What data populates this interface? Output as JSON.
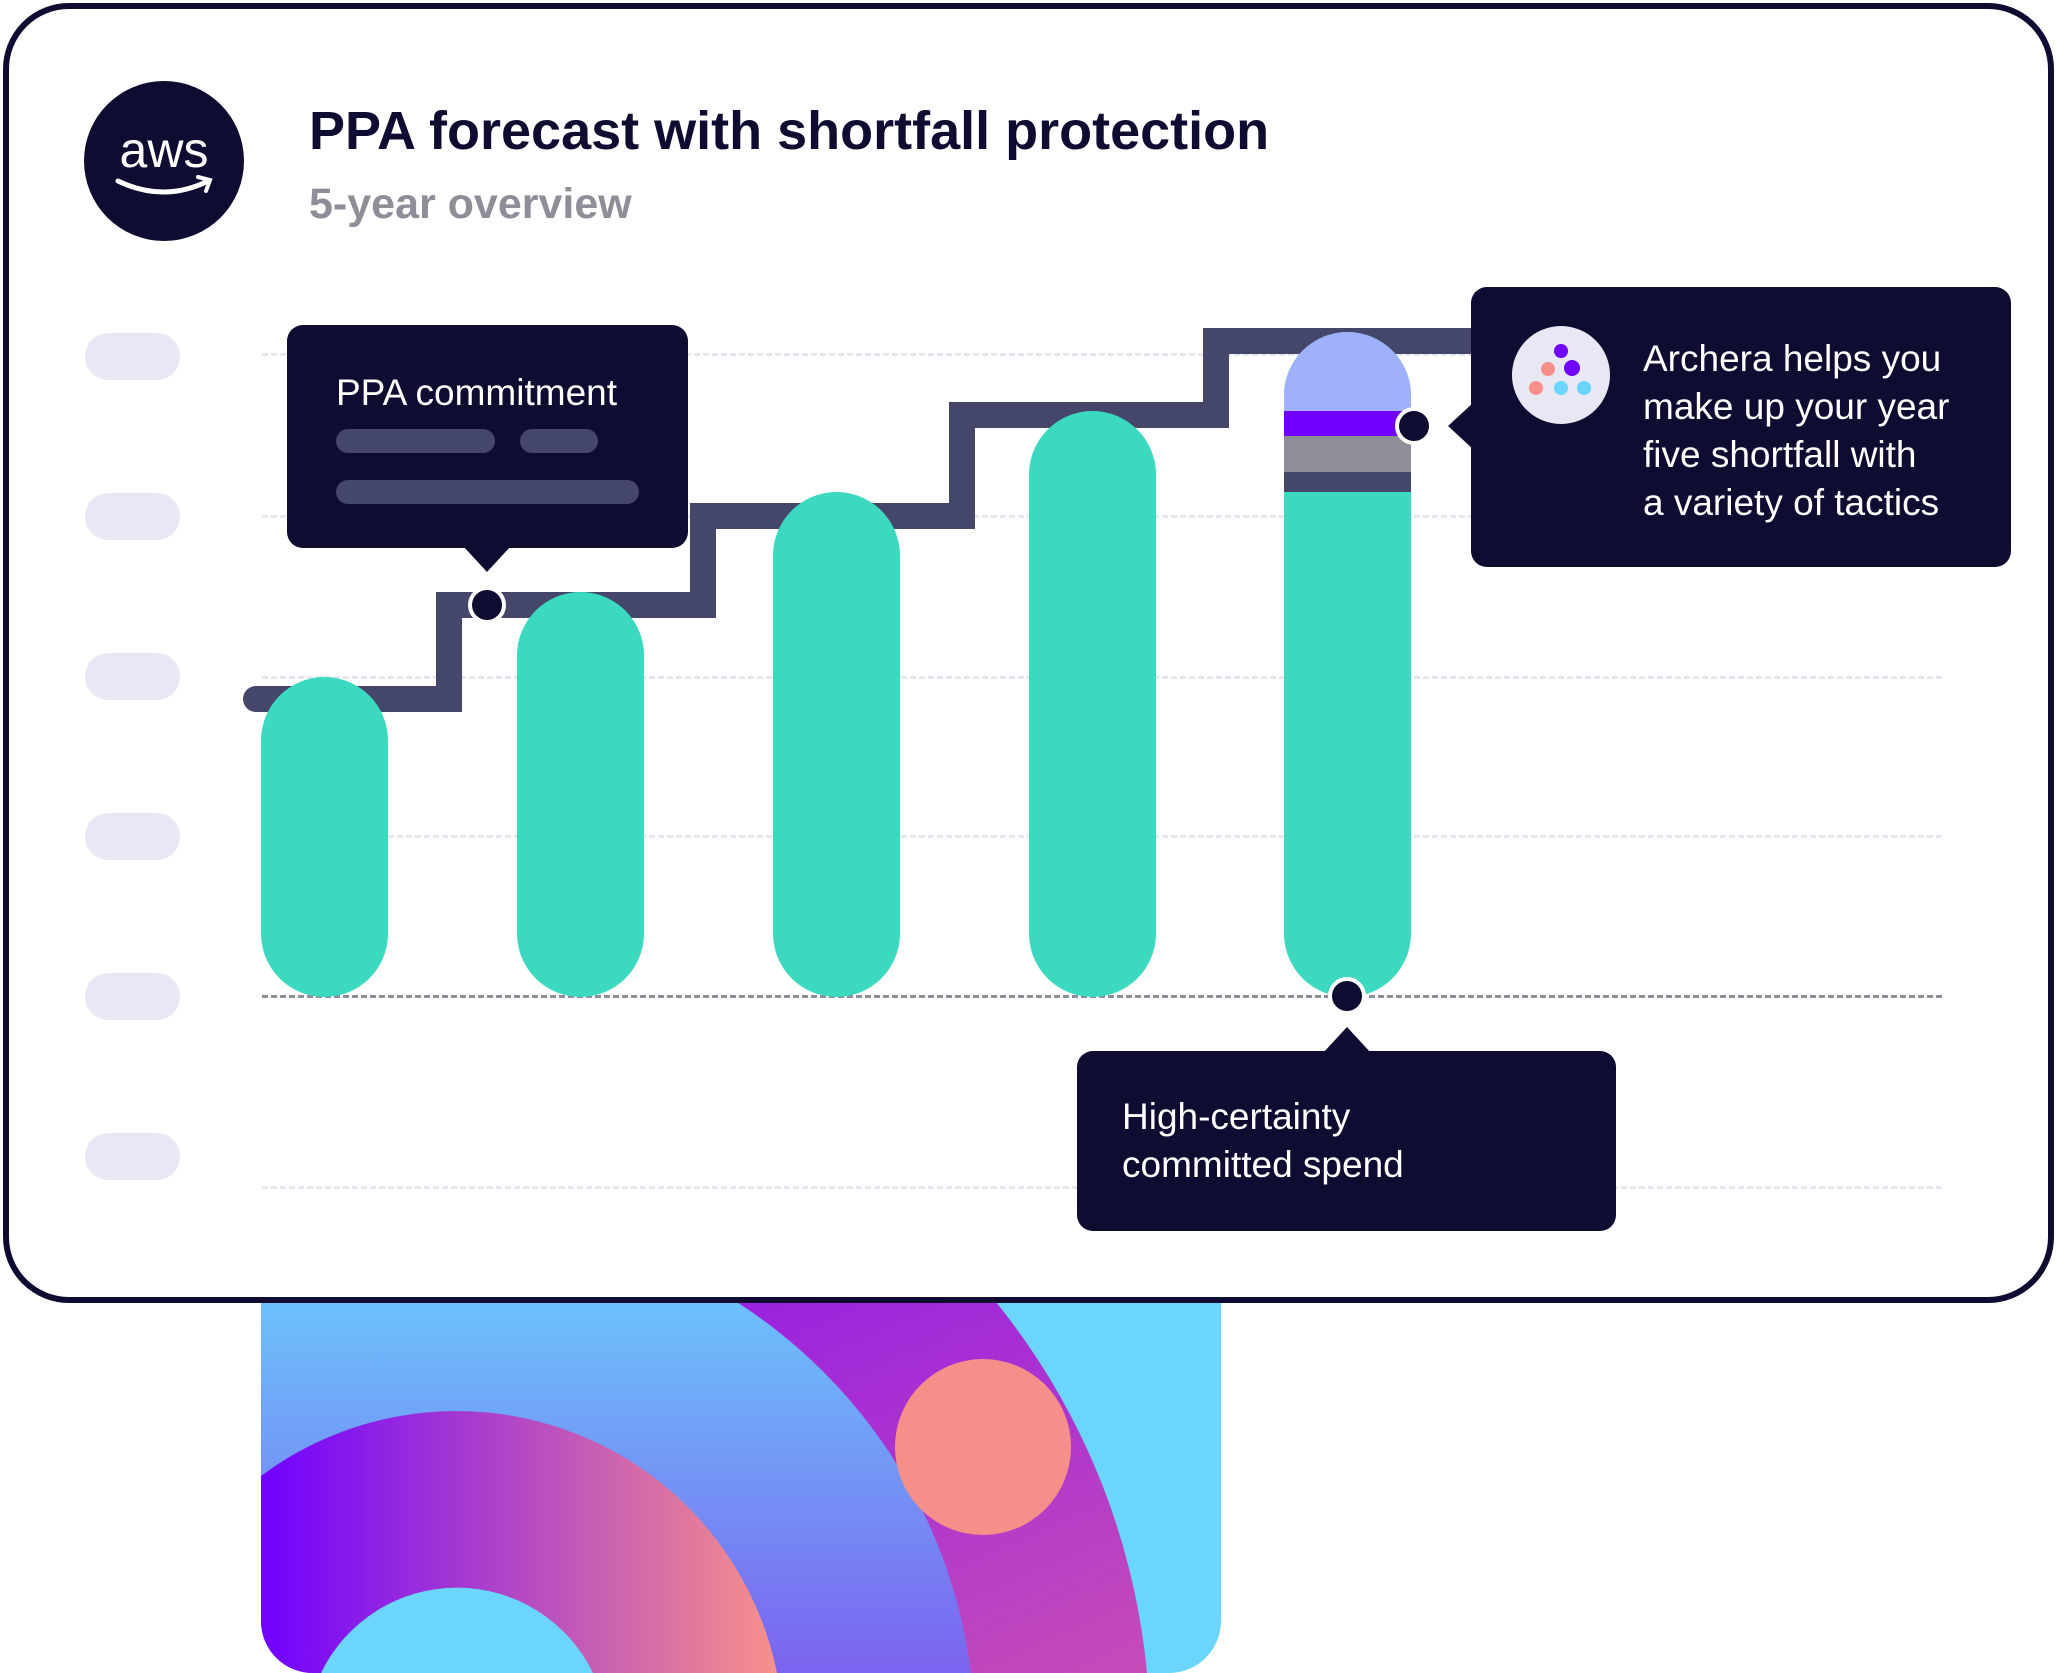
{
  "header": {
    "logo": "aws",
    "title": "PPA forecast with shortfall protection",
    "subtitle": "5-year overview"
  },
  "callouts": {
    "ppa_commitment": "PPA commitment",
    "archera": [
      "Archera helps you",
      "make up your year",
      "five shortfall with",
      "a variety of tactics"
    ],
    "committed_spend": [
      "High-certainty",
      "committed spend"
    ]
  },
  "colors": {
    "navy": "#0e0c30",
    "commitment_line": "#45476a",
    "committed_bar": "#3bd9bf",
    "shortfall_top": "#9fb0fc",
    "shortfall_purple": "#7000ff",
    "shortfall_grey": "#8e8e99"
  },
  "icons": {
    "logo": "aws-logo",
    "archera": "archera-logo-icon"
  }
}
